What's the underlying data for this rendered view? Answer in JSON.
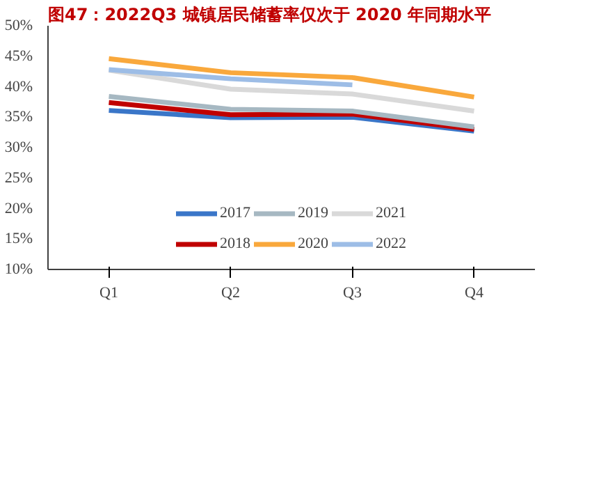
{
  "chart_data": {
    "type": "line",
    "title": "图47：2022Q3 城镇居民储蓄率仅次于 2020 年同期水平",
    "categories": [
      "Q1",
      "Q2",
      "Q3",
      "Q4"
    ],
    "series": [
      {
        "name": "2017",
        "color": "#3a76c8",
        "values": [
          36.1,
          34.9,
          35.0,
          32.7
        ]
      },
      {
        "name": "2018",
        "color": "#c00000",
        "values": [
          37.4,
          35.4,
          35.5,
          33.0
        ]
      },
      {
        "name": "2019",
        "color": "#a6b8c2",
        "values": [
          38.4,
          36.3,
          36.0,
          33.4
        ]
      },
      {
        "name": "2020",
        "color": "#f9a83c",
        "values": [
          44.6,
          42.3,
          41.5,
          38.3
        ]
      },
      {
        "name": "2021",
        "color": "#d9d9d9",
        "values": [
          42.7,
          39.6,
          38.8,
          36.0
        ]
      },
      {
        "name": "2022",
        "color": "#9dbde6",
        "values": [
          42.8,
          41.3,
          40.3,
          null
        ]
      }
    ],
    "ylim": [
      10,
      50
    ],
    "yticks": [
      {
        "value": 10,
        "label": "10%"
      },
      {
        "value": 15,
        "label": "15%"
      },
      {
        "value": 20,
        "label": "20%"
      },
      {
        "value": 25,
        "label": "25%"
      },
      {
        "value": 30,
        "label": "30%"
      },
      {
        "value": 35,
        "label": "35%"
      },
      {
        "value": 40,
        "label": "40%"
      },
      {
        "value": 45,
        "label": "45%"
      },
      {
        "value": 50,
        "label": "50%"
      }
    ],
    "grid": false,
    "legend": "bottom",
    "marker": "none",
    "line_style": "solid"
  }
}
